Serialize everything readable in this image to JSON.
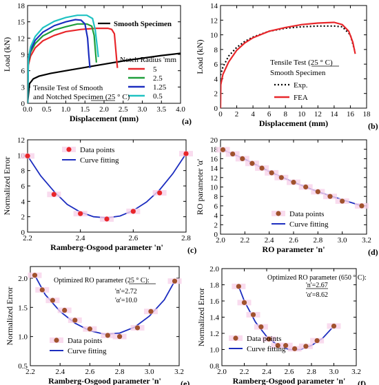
{
  "chart_data": [
    {
      "panel": "(a)",
      "type": "line",
      "xlabel": "Displacement (mm)",
      "ylabel": "Load (kN)",
      "xlim": [
        0,
        4.0
      ],
      "ylim": [
        0,
        18
      ],
      "xticks": [
        0,
        0.5,
        1.0,
        1.5,
        2.0,
        2.5,
        3.0,
        3.5,
        4.0
      ],
      "xtick_labels": [
        "0.0",
        "0.5",
        "1.0",
        "1.5",
        "2.0",
        "2.5",
        "3.0",
        "3.5",
        "4.0"
      ],
      "yticks": [
        0,
        3,
        6,
        9,
        12,
        15,
        18
      ],
      "legend_title": "Notch Radius 'mm",
      "annotation_lines": [
        "Tensile Test of Smooth",
        "and Notched Specimen (25 ° C)"
      ],
      "series": [
        {
          "name": "Smooth Specimen",
          "color": "#000000",
          "x": [
            0,
            0.05,
            0.15,
            0.3,
            0.6,
            1.0,
            1.5,
            2.0,
            2.5,
            3.0,
            3.5,
            4.0
          ],
          "y": [
            0,
            3.6,
            4.5,
            5.0,
            5.5,
            6.0,
            6.6,
            7.2,
            7.8,
            8.3,
            8.8,
            9.2
          ]
        },
        {
          "name": "5",
          "color": "#e8262a",
          "x": [
            0,
            0.02,
            0.08,
            0.2,
            0.4,
            0.7,
            1.0,
            1.4,
            1.8,
            2.1,
            2.2,
            2.27,
            2.3,
            2.33,
            2.35
          ],
          "y": [
            0,
            7.0,
            8.7,
            10.2,
            11.5,
            12.5,
            13.2,
            13.6,
            13.8,
            13.8,
            13.6,
            12.8,
            10.5,
            8.0,
            6.5
          ]
        },
        {
          "name": "2.5",
          "color": "#1e9e3a",
          "x": [
            0,
            0.02,
            0.08,
            0.2,
            0.4,
            0.7,
            1.0,
            1.3,
            1.55,
            1.68,
            1.74,
            1.77,
            1.8
          ],
          "y": [
            0,
            7.5,
            9.4,
            11.0,
            12.4,
            13.5,
            14.1,
            14.6,
            14.6,
            14.2,
            12.5,
            10.0,
            7.5
          ]
        },
        {
          "name": "1.25",
          "color": "#1c2dbf",
          "x": [
            0,
            0.02,
            0.08,
            0.2,
            0.4,
            0.7,
            1.0,
            1.25,
            1.4,
            1.5,
            1.57,
            1.6,
            1.63
          ],
          "y": [
            0,
            7.8,
            9.8,
            11.6,
            13.1,
            14.3,
            15.0,
            15.4,
            15.3,
            14.6,
            12.0,
            9.0,
            6.5
          ]
        },
        {
          "name": "0.5",
          "color": "#1fc2c2",
          "x": [
            0,
            0.02,
            0.08,
            0.2,
            0.4,
            0.7,
            1.0,
            1.3,
            1.55,
            1.7,
            1.77,
            1.82,
            1.85
          ],
          "y": [
            0,
            8.2,
            10.4,
            12.3,
            13.9,
            15.1,
            15.8,
            16.2,
            16.2,
            15.6,
            13.5,
            10.5,
            8.5
          ]
        }
      ]
    },
    {
      "panel": "(b)",
      "type": "line",
      "xlabel": "Displacement (mm)",
      "ylabel": "Load (kN)",
      "xlim": [
        0,
        18
      ],
      "ylim": [
        0,
        14
      ],
      "xticks": [
        0,
        2,
        4,
        6,
        8,
        10,
        12,
        14,
        16,
        18
      ],
      "yticks": [
        0,
        2,
        4,
        6,
        8,
        10,
        12,
        14
      ],
      "annotation_lines": [
        "Tensile Test (25 ° C)",
        "Smooth Specimen"
      ],
      "series": [
        {
          "name": "Exp.",
          "color": "#000000",
          "dash": true,
          "x": [
            0,
            0.3,
            1,
            2,
            3,
            4,
            6,
            8,
            10,
            12,
            14,
            15,
            16,
            16.5
          ],
          "y": [
            4.5,
            5.6,
            7.1,
            8.3,
            9.1,
            9.7,
            10.5,
            10.9,
            11.1,
            11.2,
            11.2,
            11.1,
            10.0,
            8.0
          ]
        },
        {
          "name": "FEA",
          "color": "#e8262a",
          "x": [
            0,
            0.03,
            0.3,
            1,
            2,
            3,
            4,
            6,
            8,
            10,
            12,
            14,
            15,
            15.8,
            16.3,
            16.6
          ],
          "y": [
            0,
            3.2,
            4.6,
            6.3,
            7.9,
            8.9,
            9.6,
            10.5,
            11.0,
            11.4,
            11.6,
            11.7,
            11.4,
            10.5,
            9.0,
            7.4
          ]
        }
      ]
    },
    {
      "panel": "(c)",
      "type": "scatter",
      "xlabel": "Ramberg-Osgood parameter 'n'",
      "ylabel": "Normalized Error",
      "xlim": [
        2.2,
        2.8
      ],
      "ylim": [
        0,
        12
      ],
      "xticks": [
        2.2,
        2.4,
        2.6,
        2.8
      ],
      "yticks": [
        0,
        2,
        4,
        6,
        8,
        10,
        12
      ],
      "points": {
        "name": "Data points",
        "color": "#e8262a",
        "x": [
          2.2,
          2.3,
          2.4,
          2.5,
          2.6,
          2.7,
          2.8
        ],
        "y": [
          9.9,
          4.9,
          2.4,
          1.7,
          2.7,
          5.1,
          10.2
        ]
      },
      "curve": {
        "name": "Curve fitting",
        "color": "#1c2dbf",
        "x": [
          2.2,
          2.25,
          2.3,
          2.35,
          2.4,
          2.45,
          2.5,
          2.55,
          2.6,
          2.65,
          2.7,
          2.75,
          2.8
        ],
        "y": [
          9.9,
          7.3,
          5.3,
          3.6,
          2.6,
          2.0,
          1.85,
          2.1,
          2.8,
          3.9,
          5.5,
          7.6,
          10.2
        ]
      }
    },
    {
      "panel": "(d)",
      "type": "scatter",
      "xlabel": "RO parameter 'n'",
      "ylabel": "RO parameter 'α'",
      "xlim": [
        2.0,
        3.2
      ],
      "ylim": [
        0,
        20
      ],
      "xticks": [
        2.0,
        2.2,
        2.4,
        2.6,
        2.8,
        3.0,
        3.2
      ],
      "yticks": [
        0,
        2,
        4,
        6,
        8,
        10,
        12,
        14,
        16,
        18,
        20
      ],
      "points": {
        "name": "Data points",
        "color": "#a0522d",
        "x": [
          2.02,
          2.1,
          2.18,
          2.26,
          2.34,
          2.42,
          2.5,
          2.6,
          2.7,
          2.8,
          2.9,
          3.0,
          3.16
        ],
        "y": [
          17.9,
          17.0,
          16.0,
          15.0,
          14.0,
          13.0,
          12.0,
          11.0,
          10.0,
          9.0,
          8.0,
          7.0,
          6.0
        ]
      },
      "curve": {
        "name": "Curve fitting",
        "color": "#1c2dbf",
        "x": [
          2.02,
          2.2,
          2.4,
          2.6,
          2.8,
          3.0,
          3.16
        ],
        "y": [
          17.9,
          15.9,
          13.3,
          11.0,
          9.0,
          7.3,
          6.0
        ]
      }
    },
    {
      "panel": "(e)",
      "type": "scatter",
      "xlabel": "Ramberg-Osgood parameter 'n'",
      "ylabel": "Normalized Error",
      "xlim": [
        2.2,
        3.2
      ],
      "ylim": [
        0.5,
        2.2
      ],
      "xticks": [
        2.2,
        2.4,
        2.6,
        2.8,
        3.0,
        3.2
      ],
      "yticks": [
        0.5,
        1.0,
        1.5,
        2.0
      ],
      "annotation_lines": [
        "Optimized RO parameter (25 ° C):",
        "'n'=2.72",
        "'α'=10.0"
      ],
      "points": {
        "name": "Data points",
        "color": "#a0522d",
        "x": [
          2.23,
          2.28,
          2.35,
          2.43,
          2.5,
          2.6,
          2.72,
          2.8,
          2.92,
          3.01,
          3.17
        ],
        "y": [
          2.05,
          1.8,
          1.62,
          1.45,
          1.28,
          1.13,
          1.02,
          1.0,
          1.15,
          1.43,
          1.95
        ]
      },
      "curve": {
        "name": "Curve fitting",
        "color": "#1c2dbf",
        "x": [
          2.23,
          2.3,
          2.4,
          2.5,
          2.6,
          2.7,
          2.8,
          2.9,
          3.0,
          3.1,
          3.17
        ],
        "y": [
          2.05,
          1.72,
          1.43,
          1.23,
          1.1,
          1.04,
          1.06,
          1.16,
          1.35,
          1.63,
          1.95
        ]
      }
    },
    {
      "panel": "(f)",
      "type": "scatter",
      "xlabel": "Ramberg-Osgood parameter 'n'",
      "ylabel": "Normalized Error",
      "xlim": [
        2.0,
        3.2
      ],
      "ylim": [
        0.8,
        2.0
      ],
      "xticks": [
        2.0,
        2.2,
        2.4,
        2.6,
        2.8,
        3.0,
        3.2
      ],
      "yticks": [
        0.8,
        1.0,
        1.2,
        1.4,
        1.6,
        1.8,
        2.0
      ],
      "annotation_lines": [
        "Optimized RO parameter (650 ° C):",
        "'n'=2.67",
        "'α'=8.62"
      ],
      "points": {
        "name": "Data points",
        "color": "#a0522d",
        "x": [
          2.15,
          2.2,
          2.28,
          2.35,
          2.42,
          2.5,
          2.57,
          2.65,
          2.75,
          2.85,
          3.0
        ],
        "y": [
          1.78,
          1.58,
          1.43,
          1.28,
          1.13,
          1.05,
          1.05,
          1.01,
          1.04,
          1.11,
          1.29
        ]
      },
      "curve": {
        "name": "Curve fitting",
        "color": "#1c2dbf",
        "x": [
          2.15,
          2.2,
          2.3,
          2.4,
          2.5,
          2.6,
          2.7,
          2.8,
          2.9,
          3.0
        ],
        "y": [
          1.78,
          1.6,
          1.34,
          1.16,
          1.05,
          1.0,
          1.0,
          1.05,
          1.14,
          1.29
        ]
      }
    }
  ]
}
